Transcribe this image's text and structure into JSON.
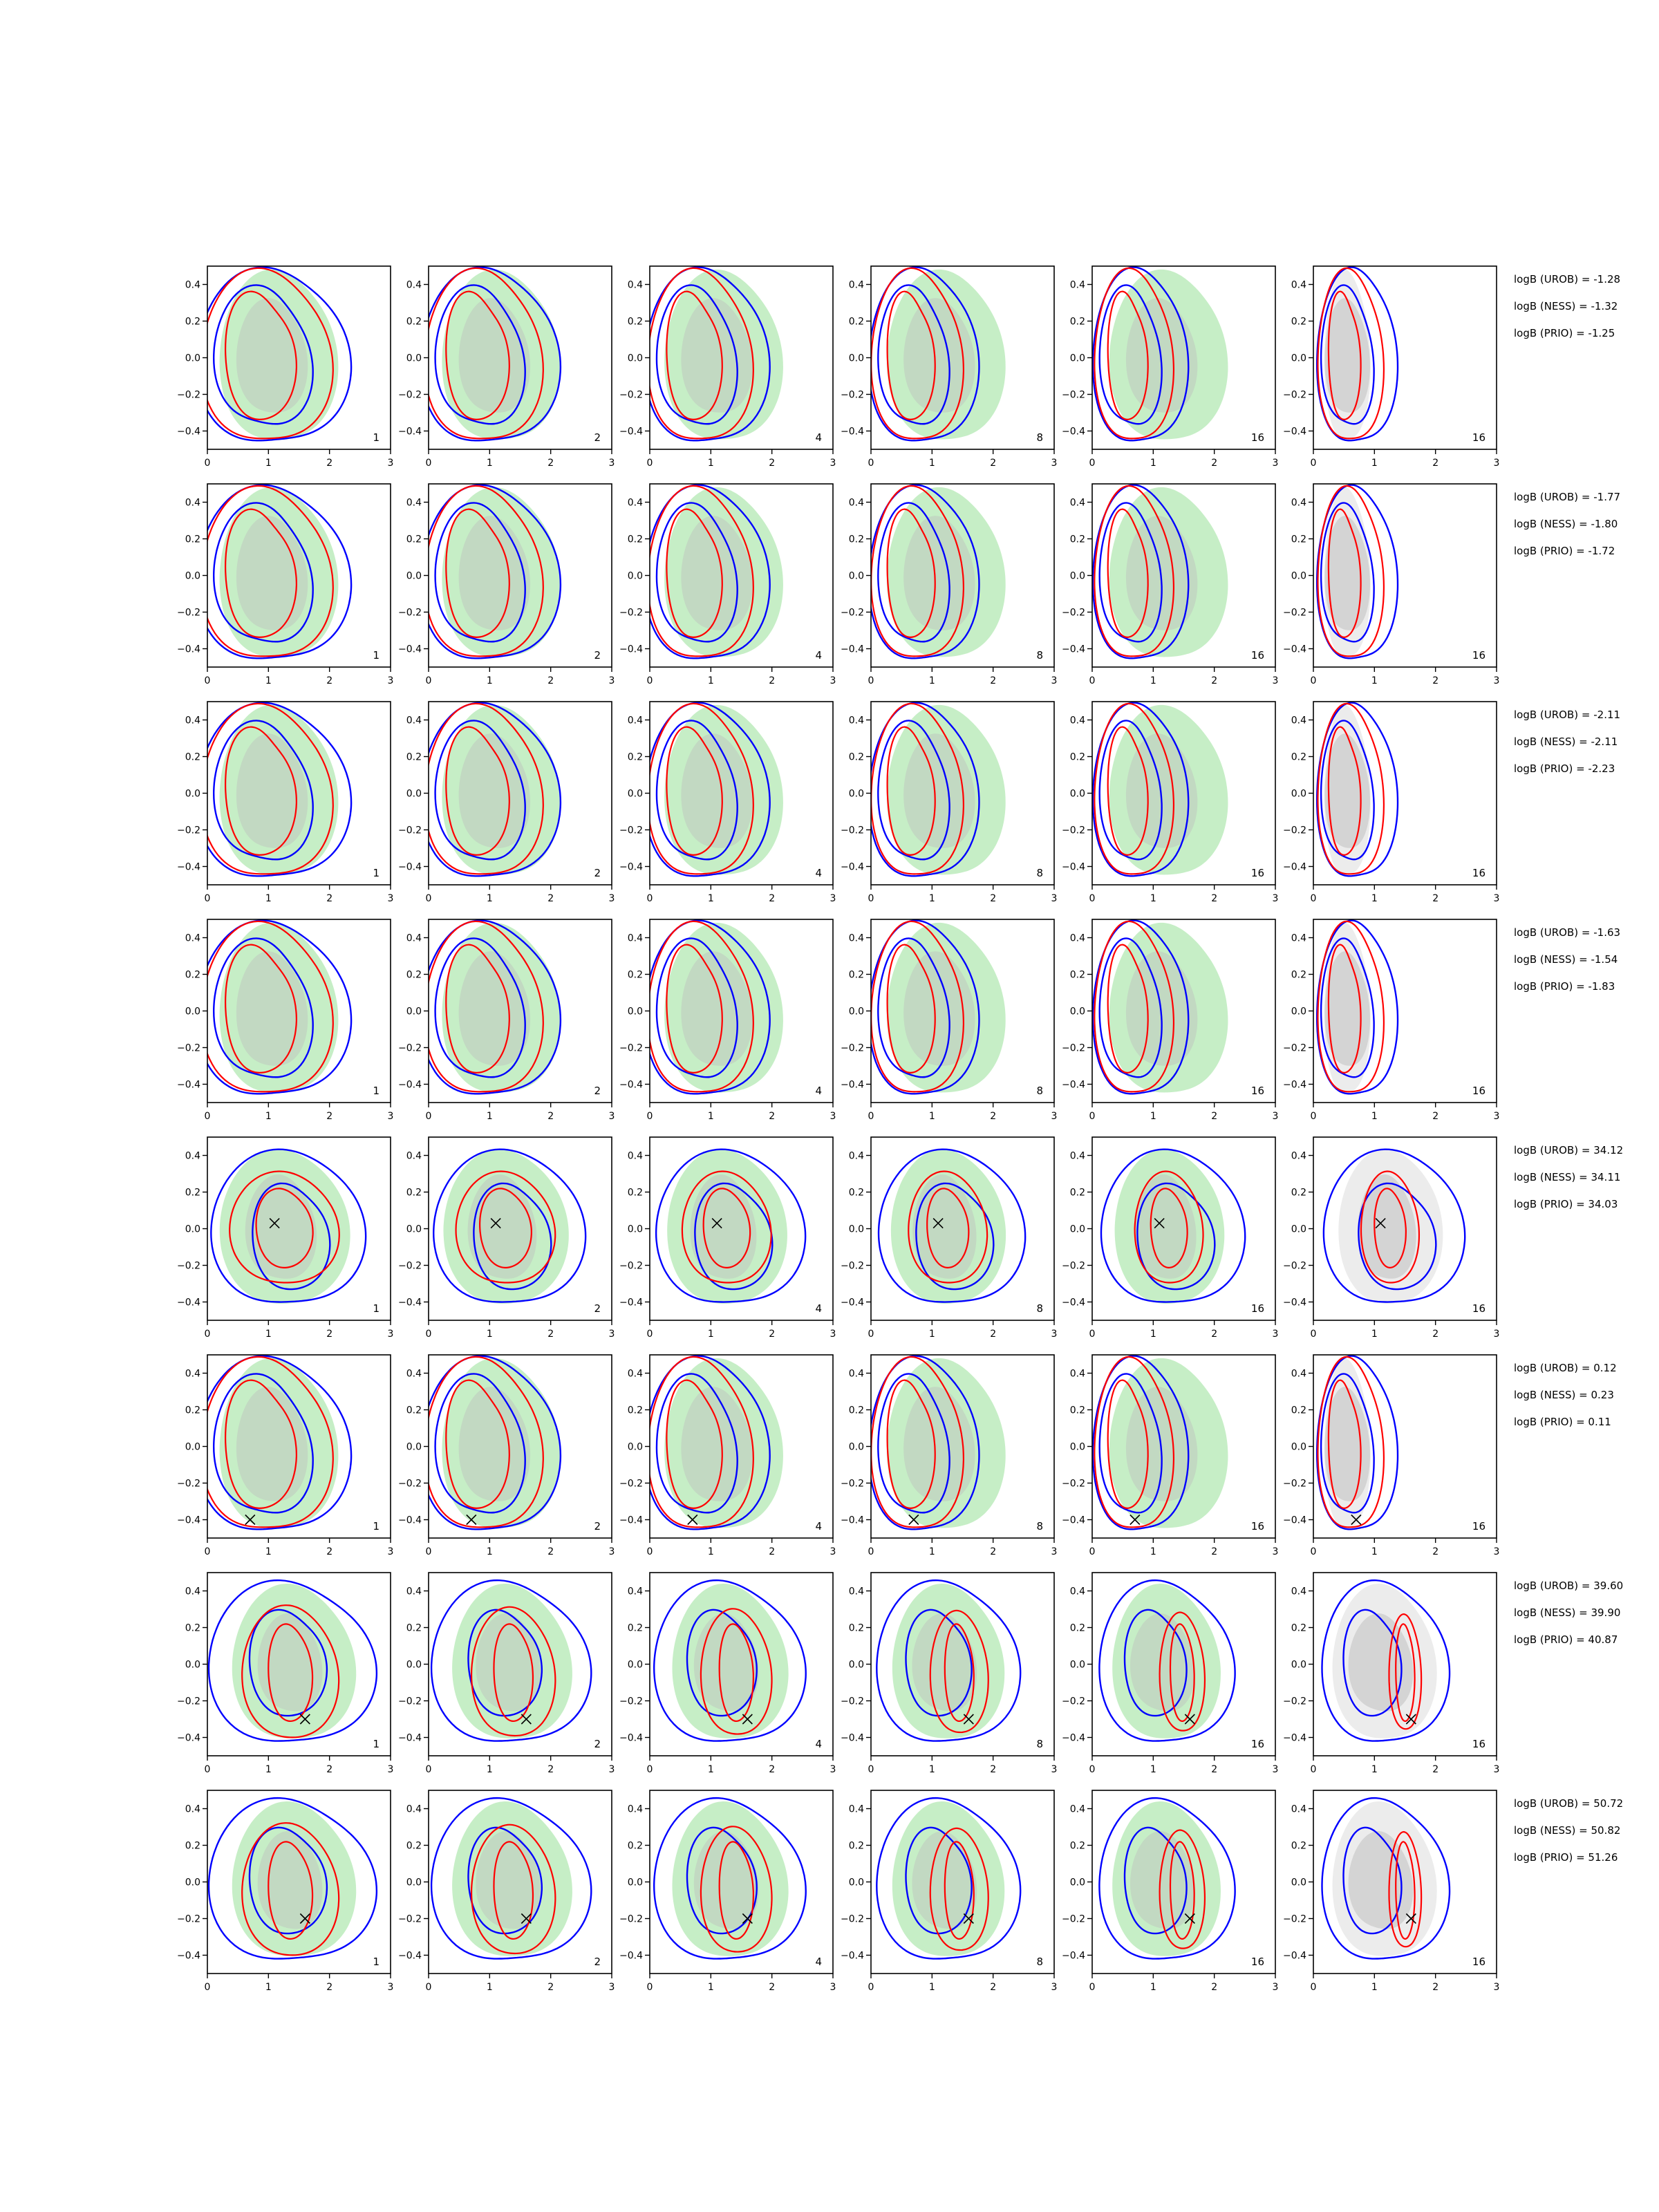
{
  "chart_data": {
    "type": "contour-grid",
    "rows": 8,
    "cols": 6,
    "xlim": [
      0,
      3
    ],
    "ylim": [
      -0.5,
      0.5
    ],
    "x_ticks": [
      "0",
      "1",
      "2",
      "3"
    ],
    "y_ticks": [
      "−0.4",
      "−0.2",
      "0.0",
      "0.2",
      "0.4"
    ],
    "x_tick_values": [
      0,
      1,
      2,
      3
    ],
    "y_tick_values": [
      -0.4,
      -0.2,
      0.0,
      0.2,
      0.4
    ],
    "panel_labels": [
      "1",
      "2",
      "4",
      "8",
      "16",
      "16"
    ],
    "colors": {
      "shade_light": "#c6eec6",
      "shade_dark": "#c2d9c2",
      "gray_light": "#ececec",
      "gray_dark": "#d4d4d4",
      "blue": "#0000ff",
      "red": "#ff0000",
      "marker": "#000000"
    },
    "logB": [
      {
        "urob": "logB (UROB) = -1.28",
        "ness": "logB (NESS) = -1.32",
        "prio": "logB (PRIO) = -1.25"
      },
      {
        "urob": "logB (UROB) = -1.77",
        "ness": "logB (NESS) = -1.80",
        "prio": "logB (PRIO) = -1.72"
      },
      {
        "urob": "logB (UROB) = -2.11",
        "ness": "logB (NESS) = -2.11",
        "prio": "logB (PRIO) = -2.23"
      },
      {
        "urob": "logB (UROB) = -1.63",
        "ness": "logB (NESS) = -1.54",
        "prio": "logB (PRIO) = -1.83"
      },
      {
        "urob": "logB (UROB) = 34.12",
        "ness": "logB (NESS) = 34.11",
        "prio": "logB (PRIO) = 34.03"
      },
      {
        "urob": "logB (UROB) = 0.12",
        "ness": "logB (NESS) = 0.23",
        "prio": "logB (PRIO) = 0.11"
      },
      {
        "urob": "logB (UROB) = 39.60",
        "ness": "logB (NESS) = 39.90",
        "prio": "logB (PRIO) = 40.87"
      },
      {
        "urob": "logB (UROB) = 50.72",
        "ness": "logB (NESS) = 50.82",
        "prio": "logB (PRIO) = 51.26"
      }
    ],
    "row_types": [
      "null",
      "null",
      "null",
      "null",
      "center",
      "low",
      "right",
      "right2"
    ],
    "markers": [
      null,
      null,
      null,
      null,
      [
        1.1,
        0.03
      ],
      [
        0.7,
        -0.4
      ],
      [
        1.6,
        -0.3
      ],
      [
        1.6,
        -0.2
      ]
    ]
  }
}
